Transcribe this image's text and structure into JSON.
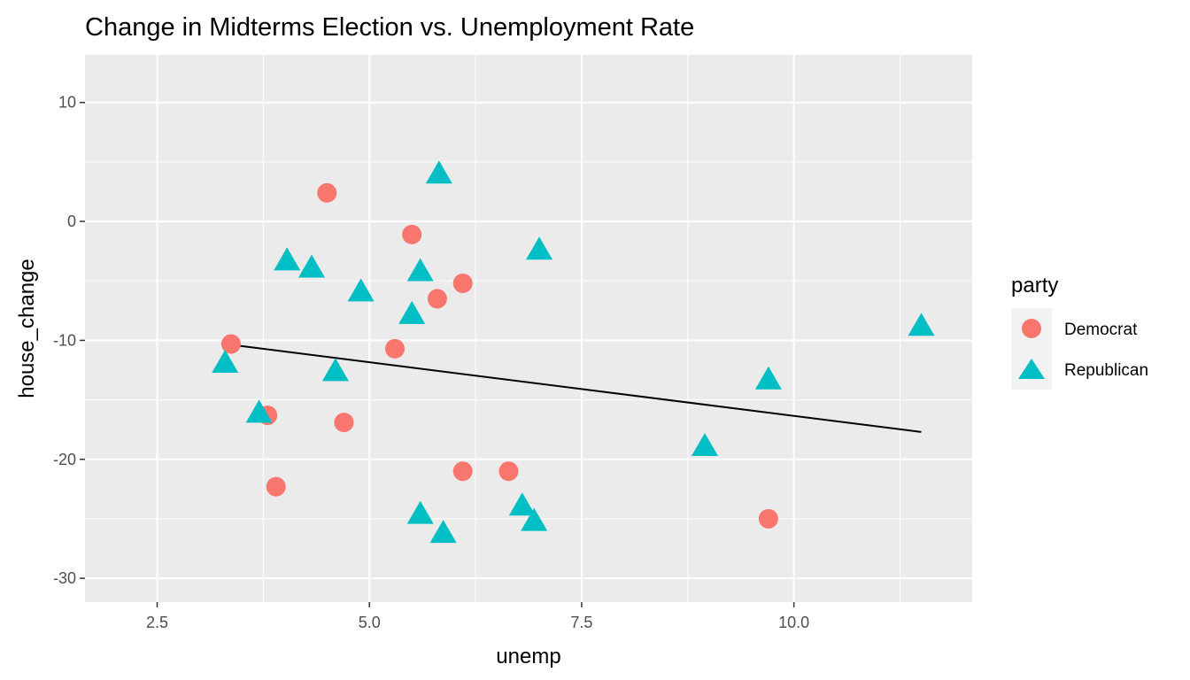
{
  "chart_data": {
    "type": "scatter",
    "title": "Change in Midterms Election vs. Unemployment Rate",
    "xlabel": "unemp",
    "ylabel": "house_change",
    "xlim": [
      1.65,
      12.1
    ],
    "ylim": [
      -32.0,
      14.0
    ],
    "x_ticks": [
      2.5,
      5.0,
      7.5,
      10.0
    ],
    "x_tick_labels": [
      "2.5",
      "5.0",
      "7.5",
      "10.0"
    ],
    "y_ticks": [
      -30,
      -20,
      -10,
      0,
      10
    ],
    "y_tick_labels": [
      "-30",
      "-20",
      "-10",
      "0",
      "10"
    ],
    "grid": true,
    "panel_background": "#ebebeb",
    "legend": {
      "title": "party",
      "position": "right",
      "entries": [
        {
          "label": "Democrat",
          "shape": "circle",
          "color": "#f8766d"
        },
        {
          "label": "Republican",
          "shape": "triangle",
          "color": "#00bfc4"
        }
      ]
    },
    "series": [
      {
        "name": "Democrat",
        "shape": "circle",
        "color": "#f8766d",
        "points": [
          {
            "x": 3.37,
            "y": -10.3
          },
          {
            "x": 3.8,
            "y": -16.3
          },
          {
            "x": 3.9,
            "y": -22.3
          },
          {
            "x": 4.5,
            "y": 2.4
          },
          {
            "x": 4.7,
            "y": -16.9
          },
          {
            "x": 5.3,
            "y": -10.7
          },
          {
            "x": 5.5,
            "y": -1.1
          },
          {
            "x": 5.8,
            "y": -6.5
          },
          {
            "x": 6.1,
            "y": -5.2
          },
          {
            "x": 6.1,
            "y": -21.0
          },
          {
            "x": 6.64,
            "y": -21.0
          },
          {
            "x": 9.7,
            "y": -25.0
          }
        ]
      },
      {
        "name": "Republican",
        "shape": "triangle",
        "color": "#00bfc4",
        "points": [
          {
            "x": 3.3,
            "y": -11.9
          },
          {
            "x": 3.7,
            "y": -16.1
          },
          {
            "x": 4.03,
            "y": -3.3
          },
          {
            "x": 4.32,
            "y": -3.9
          },
          {
            "x": 4.6,
            "y": -12.6
          },
          {
            "x": 4.9,
            "y": -5.9
          },
          {
            "x": 5.5,
            "y": -7.8
          },
          {
            "x": 5.6,
            "y": -4.2
          },
          {
            "x": 5.6,
            "y": -24.6
          },
          {
            "x": 5.82,
            "y": 4.0
          },
          {
            "x": 5.87,
            "y": -26.2
          },
          {
            "x": 6.8,
            "y": -23.9
          },
          {
            "x": 6.94,
            "y": -25.2
          },
          {
            "x": 7.0,
            "y": -2.4
          },
          {
            "x": 8.95,
            "y": -18.9
          },
          {
            "x": 9.7,
            "y": -13.3
          },
          {
            "x": 11.5,
            "y": -8.8
          }
        ]
      }
    ],
    "fit_line": {
      "color": "#000000",
      "points": [
        {
          "x": 3.3,
          "y": -10.3
        },
        {
          "x": 11.5,
          "y": -17.7
        }
      ]
    }
  }
}
